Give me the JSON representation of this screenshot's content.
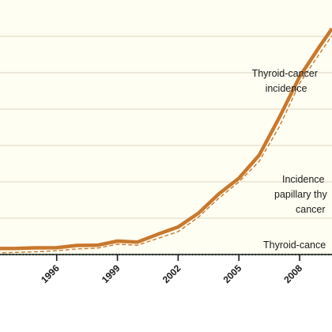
{
  "chart_data": {
    "type": "line",
    "grid": true,
    "x_tick_labels": [
      "1996",
      "1999",
      "2002",
      "2005",
      "2008"
    ],
    "xlim": [
      1993.2,
      2009.6
    ],
    "ylim": [
      0,
      1
    ],
    "y_gridline_count": 7,
    "series": [
      {
        "name": "Thyroid-cancer incidence",
        "style": "solid",
        "color": "#c8782e",
        "x": [
          1993,
          1994,
          1995,
          1996,
          1997,
          1998,
          1999,
          2000,
          2001,
          2002,
          2003,
          2004,
          2005,
          2006,
          2007,
          2008,
          2009,
          2009.6
        ],
        "y": [
          0.0235,
          0.0239,
          0.0264,
          0.0268,
          0.0358,
          0.0364,
          0.0528,
          0.0492,
          0.0799,
          0.1085,
          0.1625,
          0.2377,
          0.2997,
          0.3902,
          0.5387,
          0.6985,
          0.8186,
          0.8875
        ]
      },
      {
        "name": "Incidence of papillary thyroid cancer",
        "style": "dashed",
        "color": "#c8782e",
        "x": [
          1993,
          1994,
          1995,
          1996,
          1997,
          1998,
          1999,
          2000,
          2001,
          2002,
          2003,
          2004,
          2005,
          2006,
          2007,
          2008,
          2009,
          2009.6
        ],
        "y": [
          0.0061,
          0.0085,
          0.0109,
          0.0148,
          0.0219,
          0.0249,
          0.0403,
          0.0368,
          0.0634,
          0.09,
          0.1467,
          0.2209,
          0.285,
          0.3657,
          0.5023,
          0.6723,
          0.7908,
          0.8602
        ]
      },
      {
        "name": "Thyroid-cancer",
        "style": "dotted",
        "color": "#2e7d3e",
        "x": [
          1993,
          2009.6
        ],
        "y": [
          0.0,
          0.0
        ]
      }
    ],
    "annotations": [
      {
        "lines": [
          "Thyroid-cancer",
          "incidence"
        ],
        "series": 0
      },
      {
        "lines": [
          "Incidence",
          "papillary thy",
          "cancer"
        ],
        "series": 1
      },
      {
        "lines": [
          "Thyroid-cance"
        ],
        "series": 2
      }
    ],
    "colors": {
      "background": "#fffef2",
      "grid": "#d9d4c0",
      "axis": "#1a1a1a"
    }
  }
}
